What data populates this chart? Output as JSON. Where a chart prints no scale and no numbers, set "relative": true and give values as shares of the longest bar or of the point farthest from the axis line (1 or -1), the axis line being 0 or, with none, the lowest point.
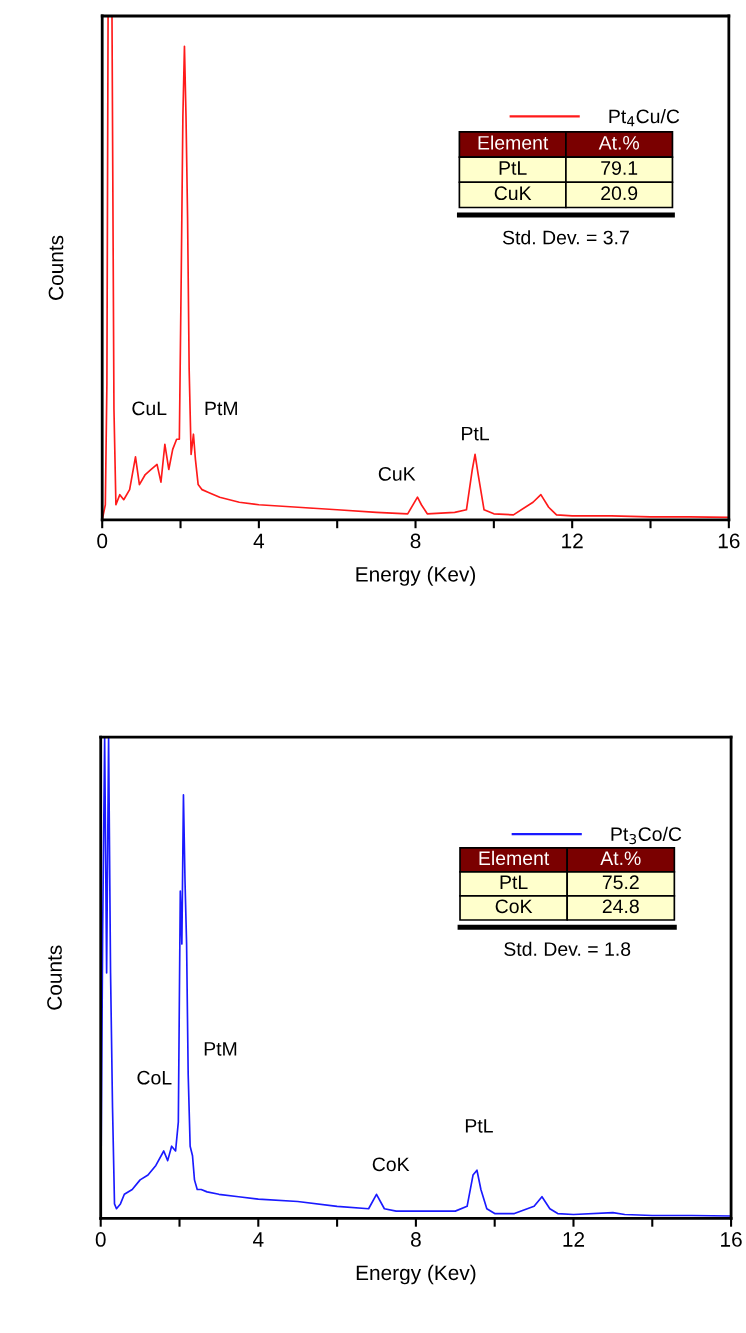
{
  "chart_data": [
    {
      "type": "line",
      "xlabel": "Energy (Kev)",
      "ylabel": "Counts",
      "relative": true,
      "xlim": [
        0,
        16
      ],
      "xticks": [
        0,
        {
          "value": 2,
          "label": null
        },
        4,
        {
          "value": 6,
          "label": null
        },
        8,
        {
          "value": 10,
          "label": null
        },
        12,
        {
          "value": 14,
          "label": null
        },
        16
      ],
      "legend": "top right",
      "grid": false,
      "series": [
        {
          "name": "Pt$_{4}$Cu/C",
          "color": "#ff1a1a",
          "x": [
            0.0,
            0.08,
            0.12,
            0.15,
            0.25,
            0.3,
            0.35,
            0.45,
            0.55,
            0.7,
            0.85,
            0.95,
            1.1,
            1.25,
            1.4,
            1.5,
            1.6,
            1.7,
            1.8,
            1.9,
            1.97,
            2.02,
            2.06,
            2.1,
            2.14,
            2.18,
            2.22,
            2.27,
            2.33,
            2.38,
            2.45,
            2.55,
            2.7,
            3.0,
            3.5,
            4.0,
            5.0,
            6.0,
            7.0,
            7.8,
            8.05,
            8.15,
            8.3,
            9.0,
            9.3,
            9.45,
            9.52,
            9.6,
            9.75,
            10.0,
            10.5,
            11.0,
            11.2,
            11.4,
            11.6,
            12.0,
            13.0,
            14.0,
            15.0,
            16.0
          ],
          "values": [
            0.0,
            0.03,
            0.27,
            1.0,
            1.0,
            0.22,
            0.03,
            0.05,
            0.04,
            0.06,
            0.125,
            0.07,
            0.09,
            0.1,
            0.11,
            0.075,
            0.15,
            0.1,
            0.14,
            0.16,
            0.16,
            0.5,
            0.8,
            0.94,
            0.8,
            0.6,
            0.3,
            0.13,
            0.17,
            0.12,
            0.07,
            0.06,
            0.055,
            0.045,
            0.035,
            0.03,
            0.025,
            0.02,
            0.015,
            0.012,
            0.045,
            0.03,
            0.012,
            0.015,
            0.02,
            0.1,
            0.13,
            0.09,
            0.02,
            0.012,
            0.01,
            0.035,
            0.05,
            0.025,
            0.01,
            0.008,
            0.008,
            0.006,
            0.006,
            0.005
          ]
        }
      ],
      "annotations": [
        "CuL",
        "PtM",
        "CuK",
        "PtL",
        "Element",
        "At.%",
        "PtL",
        "79.1",
        "CuK",
        "20.9",
        "Std. Dev. = 3.7"
      ]
    },
    {
      "type": "line",
      "xlabel": "Energy (Kev)",
      "ylabel": "Counts",
      "relative": true,
      "xlim": [
        0,
        16
      ],
      "xticks": [
        0,
        {
          "value": 2,
          "label": null
        },
        4,
        {
          "value": 6,
          "label": null
        },
        8,
        {
          "value": 10,
          "label": null
        },
        12,
        {
          "value": 14,
          "label": null
        },
        16
      ],
      "legend": "top right",
      "grid": false,
      "series": [
        {
          "name": "Pt$_{3}$Co/C",
          "color": "#1a1aff",
          "x": [
            0.0,
            0.05,
            0.1,
            0.15,
            0.2,
            0.25,
            0.3,
            0.35,
            0.4,
            0.5,
            0.6,
            0.8,
            1.0,
            1.2,
            1.4,
            1.6,
            1.7,
            1.8,
            1.9,
            1.97,
            2.02,
            2.06,
            2.1,
            2.14,
            2.18,
            2.22,
            2.27,
            2.33,
            2.38,
            2.45,
            2.55,
            2.7,
            3.0,
            3.5,
            4.0,
            5.0,
            6.0,
            6.8,
            7.0,
            7.2,
            7.5,
            8.0,
            9.0,
            9.3,
            9.45,
            9.55,
            9.65,
            9.8,
            10.0,
            10.5,
            11.0,
            11.2,
            11.4,
            11.6,
            12.0,
            13.0,
            13.3,
            14.0,
            15.0,
            16.0
          ],
          "values": [
            0.0,
            0.6,
            1.0,
            0.51,
            1.0,
            0.51,
            0.23,
            0.03,
            0.02,
            0.03,
            0.05,
            0.06,
            0.08,
            0.09,
            0.11,
            0.14,
            0.12,
            0.15,
            0.14,
            0.2,
            0.68,
            0.57,
            0.88,
            0.7,
            0.57,
            0.3,
            0.15,
            0.13,
            0.08,
            0.06,
            0.06,
            0.055,
            0.05,
            0.045,
            0.04,
            0.035,
            0.025,
            0.02,
            0.05,
            0.02,
            0.015,
            0.015,
            0.015,
            0.025,
            0.09,
            0.1,
            0.06,
            0.02,
            0.01,
            0.01,
            0.025,
            0.045,
            0.02,
            0.01,
            0.008,
            0.012,
            0.008,
            0.006,
            0.006,
            0.005
          ]
        }
      ],
      "annotations": [
        "CoL",
        "PtM",
        "CoK",
        "PtL",
        "Element",
        "At.%",
        "PtL",
        "75.2",
        "CoK",
        "24.8",
        "Std. Dev. = 1.8"
      ]
    }
  ]
}
